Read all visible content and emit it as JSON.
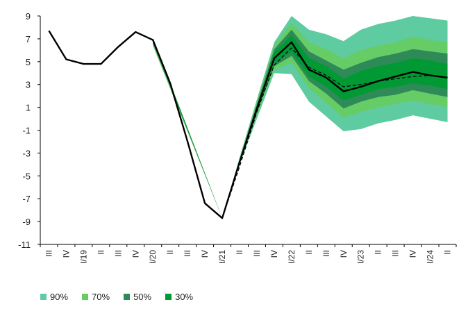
{
  "chart_data": {
    "type": "area",
    "title": "",
    "xlabel": "",
    "ylabel": "",
    "ylim": [
      -11,
      9
    ],
    "yticks": [
      9,
      7,
      5,
      3,
      1,
      -1,
      -3,
      -5,
      -7,
      -9,
      -11
    ],
    "grid": false,
    "legend_position": "bottom-left",
    "categories": [
      "III",
      "IV",
      "I/19",
      "II",
      "III",
      "IV",
      "I/20",
      "II",
      "III",
      "IV",
      "I/21",
      "II",
      "III",
      "IV",
      "I/22",
      "II",
      "III",
      "IV",
      "I/23",
      "II",
      "III",
      "IV",
      "I/24",
      "II"
    ],
    "series": [
      {
        "style": "solid-black",
        "values": [
          7.7,
          5.2,
          4.8,
          4.8,
          6.3,
          7.6,
          6.9,
          3.1,
          -2.0,
          -7.4,
          -8.7,
          -3.8,
          0.9,
          5.3,
          6.7,
          4.3,
          3.6,
          2.4,
          2.8,
          3.3,
          3.7,
          4.1,
          3.8,
          3.6
        ]
      },
      {
        "style": "dashed-black",
        "values": [
          null,
          null,
          null,
          null,
          null,
          null,
          null,
          null,
          null,
          null,
          -8.7,
          -4.2,
          0.6,
          4.7,
          6.2,
          4.5,
          3.8,
          2.8,
          3.0,
          3.3,
          3.5,
          3.7,
          3.8,
          3.6
        ]
      }
    ],
    "fan_bands": [
      {
        "name": "90%",
        "color": "#5ecba1",
        "lower": [
          null,
          null,
          null,
          null,
          null,
          null,
          6.9,
          null,
          null,
          null,
          -8.7,
          -4.0,
          0.0,
          4.0,
          3.9,
          1.5,
          0.2,
          -1.1,
          -0.9,
          -0.4,
          -0.1,
          0.3,
          0.0,
          -0.3
        ],
        "upper": [
          null,
          null,
          null,
          null,
          null,
          null,
          6.9,
          null,
          null,
          null,
          -8.7,
          -3.4,
          1.7,
          6.7,
          9.0,
          7.8,
          7.4,
          6.8,
          7.8,
          8.3,
          8.6,
          9.0,
          8.8,
          8.6
        ]
      },
      {
        "name": "70%",
        "color": "#66cc66",
        "lower": [
          null,
          null,
          null,
          null,
          null,
          null,
          6.4,
          null,
          null,
          null,
          -8.7,
          -3.9,
          0.3,
          4.3,
          4.9,
          2.7,
          1.4,
          0.1,
          0.6,
          1.0,
          1.3,
          1.6,
          1.3,
          1.0
        ],
        "upper": [
          null,
          null,
          null,
          null,
          null,
          null,
          7.1,
          null,
          null,
          null,
          -8.7,
          -3.5,
          1.5,
          6.4,
          8.4,
          6.7,
          6.1,
          5.3,
          6.0,
          6.4,
          6.7,
          7.2,
          6.9,
          6.7
        ]
      },
      {
        "name": "50%",
        "color": "#2e8b57",
        "lower": [
          null,
          null,
          null,
          null,
          null,
          null,
          6.6,
          null,
          null,
          null,
          -8.7,
          -3.8,
          0.5,
          4.6,
          5.5,
          3.3,
          2.2,
          0.9,
          1.5,
          1.9,
          2.1,
          2.5,
          2.2,
          1.9
        ],
        "upper": [
          null,
          null,
          null,
          null,
          null,
          null,
          7.0,
          null,
          null,
          null,
          -8.7,
          -3.6,
          1.3,
          6.1,
          7.8,
          5.9,
          5.1,
          4.3,
          4.9,
          5.4,
          5.7,
          6.1,
          5.9,
          5.7
        ]
      },
      {
        "name": "30%",
        "color": "#009933",
        "lower": [
          null,
          null,
          null,
          null,
          null,
          null,
          6.8,
          null,
          null,
          null,
          -8.7,
          -3.75,
          0.7,
          4.9,
          5.9,
          3.7,
          2.8,
          1.6,
          2.1,
          2.6,
          2.8,
          3.1,
          2.9,
          2.6
        ],
        "upper": [
          null,
          null,
          null,
          null,
          null,
          null,
          7.0,
          null,
          null,
          null,
          -8.7,
          -3.65,
          1.1,
          5.8,
          7.3,
          5.3,
          4.6,
          3.5,
          4.2,
          4.6,
          4.9,
          5.3,
          5.1,
          4.8
        ]
      }
    ]
  }
}
